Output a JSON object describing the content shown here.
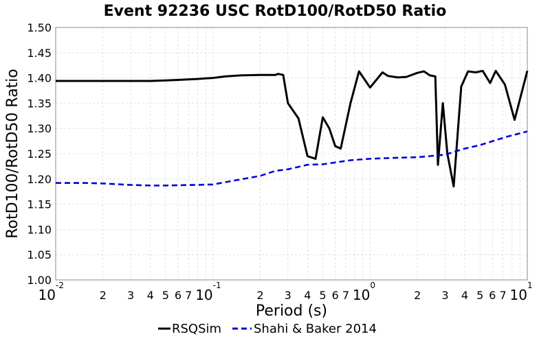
{
  "chart_data": {
    "type": "line",
    "title": "Event 92236 USC RotD100/RotD50 Ratio",
    "xlabel": "Period (s)",
    "ylabel": "RotD100/RotD50 Ratio",
    "xscale": "log",
    "xlim": [
      0.01,
      10
    ],
    "ylim": [
      1.0,
      1.5
    ],
    "yticks": [
      "1.00",
      "1.05",
      "1.10",
      "1.15",
      "1.20",
      "1.25",
      "1.30",
      "1.35",
      "1.40",
      "1.45",
      "1.50"
    ],
    "xmajor_ticks": [
      {
        "base": "10",
        "exp": "-2",
        "value": 0.01
      },
      {
        "base": "10",
        "exp": "-1",
        "value": 0.1
      },
      {
        "base": "10",
        "exp": "0",
        "value": 1
      },
      {
        "base": "10",
        "exp": "1",
        "value": 10
      }
    ],
    "xminor_ticks": [
      "2",
      "3",
      "4",
      "5",
      "6",
      "7"
    ],
    "grid": true,
    "legend_position": "bottom",
    "series": [
      {
        "name": "RSQSim",
        "color": "#000000",
        "style": "solid",
        "x": [
          0.01,
          0.015,
          0.02,
          0.03,
          0.04,
          0.05,
          0.06,
          0.07,
          0.08,
          0.09,
          0.1,
          0.12,
          0.15,
          0.2,
          0.25,
          0.26,
          0.28,
          0.3,
          0.35,
          0.4,
          0.45,
          0.5,
          0.55,
          0.6,
          0.65,
          0.75,
          0.85,
          1.0,
          1.2,
          1.3,
          1.5,
          1.7,
          2.0,
          2.2,
          2.4,
          2.6,
          2.7,
          2.9,
          3.1,
          3.4,
          3.8,
          4.2,
          4.7,
          5.2,
          5.8,
          6.3,
          7.2,
          8.3,
          10.0
        ],
        "y": [
          1.394,
          1.394,
          1.394,
          1.394,
          1.394,
          1.395,
          1.396,
          1.397,
          1.398,
          1.399,
          1.4,
          1.403,
          1.405,
          1.406,
          1.406,
          1.408,
          1.406,
          1.35,
          1.32,
          1.245,
          1.24,
          1.322,
          1.3,
          1.265,
          1.26,
          1.35,
          1.413,
          1.381,
          1.411,
          1.404,
          1.401,
          1.402,
          1.41,
          1.413,
          1.405,
          1.403,
          1.228,
          1.35,
          1.25,
          1.185,
          1.383,
          1.413,
          1.411,
          1.414,
          1.39,
          1.414,
          1.387,
          1.317,
          1.414
        ]
      },
      {
        "name": "Shahi & Baker 2014",
        "color": "#0000dd",
        "style": "dashed",
        "x": [
          0.01,
          0.015,
          0.02,
          0.03,
          0.04,
          0.05,
          0.075,
          0.1,
          0.15,
          0.2,
          0.25,
          0.3,
          0.4,
          0.5,
          0.75,
          1.0,
          1.5,
          2.0,
          3.0,
          4.0,
          5.0,
          7.5,
          10.0
        ],
        "y": [
          1.192,
          1.192,
          1.191,
          1.188,
          1.187,
          1.187,
          1.188,
          1.189,
          1.199,
          1.206,
          1.216,
          1.219,
          1.228,
          1.229,
          1.237,
          1.24,
          1.242,
          1.243,
          1.248,
          1.26,
          1.267,
          1.284,
          1.294
        ]
      }
    ]
  }
}
